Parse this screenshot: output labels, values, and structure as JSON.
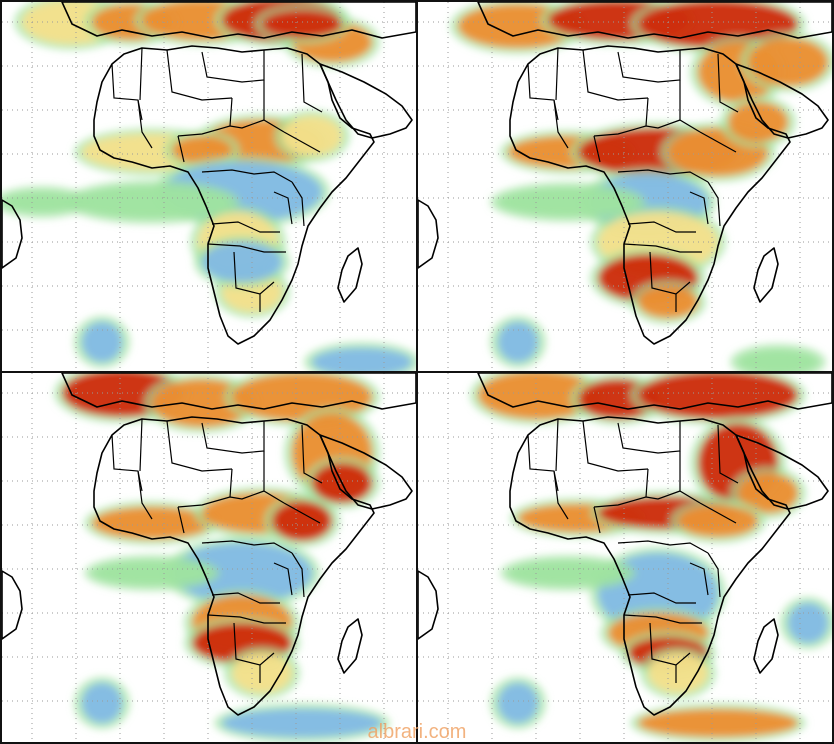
{
  "watermark": "albrari.com",
  "panels": [
    {
      "id": "panel-1",
      "name": "map-panel-top-left"
    },
    {
      "id": "panel-2",
      "name": "map-panel-top-right"
    },
    {
      "id": "panel-3",
      "name": "map-panel-bottom-left"
    },
    {
      "id": "panel-4",
      "name": "map-panel-bottom-right"
    }
  ],
  "colors": {
    "green": "#9fe3a0",
    "blue": "#7fb8e8",
    "yellow": "#f8e08a",
    "orange": "#f08a2a",
    "red": "#d02000",
    "border": "#000000",
    "grid": "#9a9a9a"
  }
}
